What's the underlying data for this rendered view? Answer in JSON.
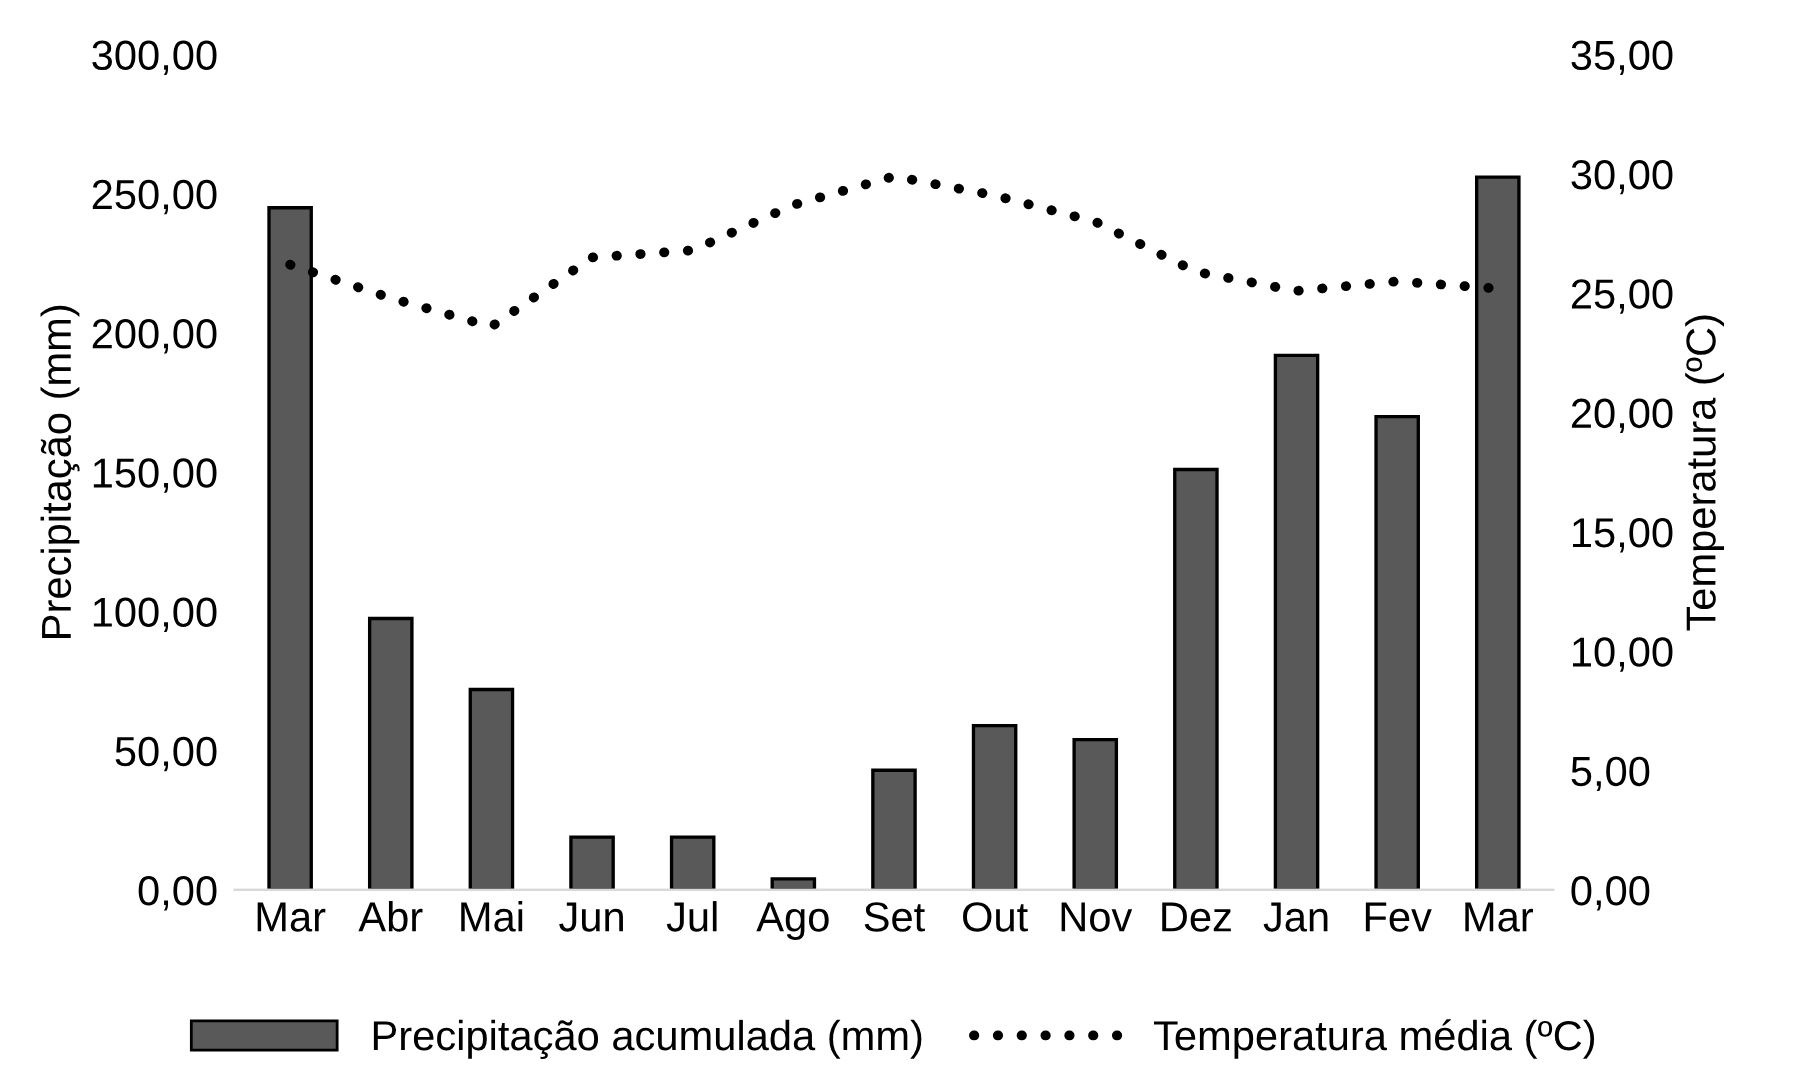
{
  "chart_data": {
    "type": "bar",
    "ylabel": "Precipitação (mm)",
    "y2label": "Temperatura (ºC)",
    "categories": [
      "Mar",
      "Abr",
      "Mai",
      "Jun",
      "Jul",
      "Ago",
      "Set",
      "Out",
      "Nov",
      "Dez",
      "Jan",
      "Fev",
      "Mar"
    ],
    "series": [
      {
        "name": "Precipitação acumulada (mm)",
        "color": "#595959",
        "values": [
          245,
          97.5,
          72,
          19,
          19,
          4,
          43,
          59,
          54,
          151,
          192,
          170,
          256
        ]
      },
      {
        "name": "Temperatura média (ºC)",
        "type": "line",
        "axis": "y2",
        "color": "#000000",
        "line_style": "dotted",
        "values": [
          26.2,
          24.8,
          23.6,
          26.5,
          26.8,
          28.7,
          29.9,
          29.1,
          28.0,
          25.9,
          25.1,
          25.5,
          25.2
        ]
      }
    ],
    "ylim": [
      0,
      300
    ],
    "yticks": [
      {
        "value": 0,
        "label": "0,00"
      },
      {
        "value": 50,
        "label": "50,00"
      },
      {
        "value": 100,
        "label": "100,00"
      },
      {
        "value": 150,
        "label": "150,00"
      },
      {
        "value": 200,
        "label": "200,00"
      },
      {
        "value": 250,
        "label": "250,00"
      },
      {
        "value": 300,
        "label": "300,00"
      }
    ],
    "y2lim": [
      0,
      35
    ],
    "y2ticks": [
      {
        "value": 0,
        "label": "0,00"
      },
      {
        "value": 5,
        "label": "5,00"
      },
      {
        "value": 10,
        "label": "10,00"
      },
      {
        "value": 15,
        "label": "15,00"
      },
      {
        "value": 20,
        "label": "20,00"
      },
      {
        "value": 25,
        "label": "25,00"
      },
      {
        "value": 30,
        "label": "30,00"
      },
      {
        "value": 35,
        "label": "35,00"
      }
    ],
    "grid": false,
    "legend": "bottom"
  }
}
